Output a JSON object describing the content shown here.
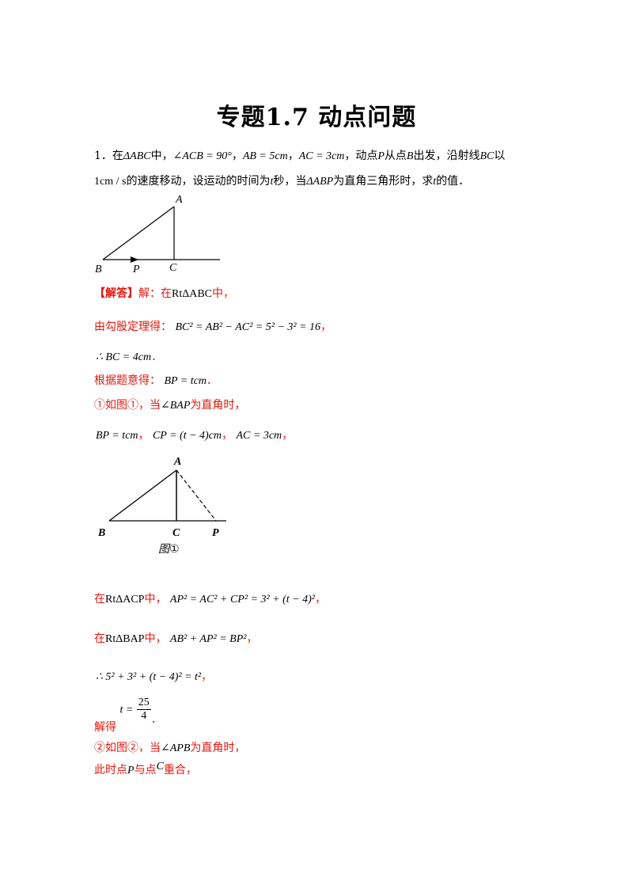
{
  "title": "专题1.7  动点问题",
  "problem": {
    "number": "1．",
    "line1": {
      "p1": "在",
      "tri": "ΔABC",
      "p2": "中，",
      "angle": "∠ACB = 90°",
      "sep1": "，",
      "ab": "AB = 5cm",
      "sep2": "，",
      "ac": "AC = 3cm",
      "p3": "，动点",
      "P": "P",
      "p4": "从点",
      "B": "B",
      "p5": "出发，沿射线",
      "BC": "BC",
      "p6": "以"
    },
    "line2": {
      "speed": "1cm / s",
      "p1": "的速度移动，设运动的时间为",
      "t1": "t",
      "p2": "秒，当",
      "tri": "ΔABP",
      "p3": "为直角三角形时，求",
      "t2": "t",
      "p4": "的值．"
    }
  },
  "figure1": {
    "A": "A",
    "B": "B",
    "C": "C",
    "P": "P"
  },
  "solution": {
    "head_bracket": "【解答】",
    "head_text": "解：在",
    "rt1": "RtΔABC",
    "head_end": "中，",
    "s2_label": "由勾股定理得：",
    "s2_math": "BC² = AB² − AC² = 5² − 3² = 16",
    "s2_end": "，",
    "s3_math": "∴ BC = 4cm",
    "s3_end": "．",
    "s4_label": "根据题意得：",
    "s4_math": "BP = tcm",
    "s4_end": "．",
    "case1_a": "①如图①，当",
    "case1_angle": "∠BAP",
    "case1_b": "为直角时，",
    "s6_bp": "BP = tcm",
    "s6_sep1": "，",
    "s6_cp": "CP = (t − 4)cm",
    "s6_sep2": "，",
    "s6_ac": "AC = 3cm",
    "s6_end": "，",
    "s8_a": "在",
    "s8_rt": "RtΔACP",
    "s8_b": "中，",
    "s8_math": "AP² = AC² + CP² = 3² + (t − 4)²",
    "s8_end": "，",
    "s9_a": "在",
    "s9_rt": "RtΔBAP",
    "s9_b": "中，",
    "s9_math": "AB² + AP² = BP²",
    "s9_end": "，",
    "s10_math": "∴ 5² + 3² + (t − 4)² = t²",
    "s10_end": "，",
    "s11_label": "解得",
    "s11_t": "t =",
    "s11_num": "25",
    "s11_den": "4",
    "s11_end": "．",
    "case2_a": "②如图②，当",
    "case2_angle": "∠APB",
    "case2_b": "为直角时，",
    "s13_a": "此时点",
    "s13_P": "P",
    "s13_b": "与点",
    "s13_C": "C",
    "s13_c": "重合，"
  },
  "figure2": {
    "A": "A",
    "B": "B",
    "C": "C",
    "P": "P",
    "caption": "图①"
  }
}
